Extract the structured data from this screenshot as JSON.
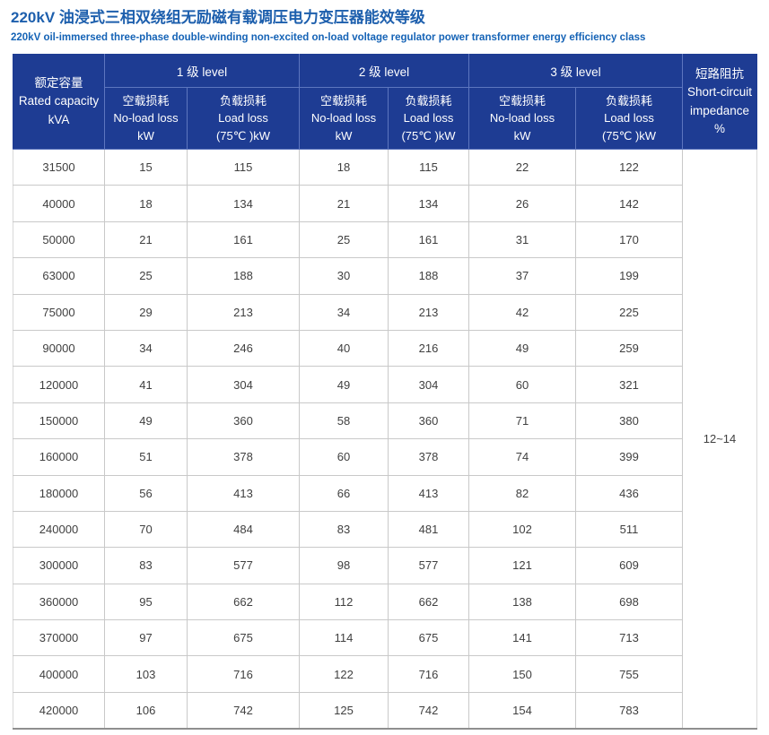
{
  "page": {
    "title": "220kV 油浸式三相双绕组无励磁有载调压电力变压器能效等级",
    "subtitle": "220kV oil-immersed three-phase double-winding non-excited on-load voltage regulator power transformer energy efficiency class"
  },
  "colors": {
    "title_blue": "#1d5fad",
    "subtitle_blue": "#1563b6",
    "header_background": "#1e3c93",
    "header_divider": "#5d76bf",
    "body_text": "#404040",
    "grid_line": "#c9c9c9",
    "bottom_line": "#8f8f8f"
  },
  "table": {
    "header": {
      "rated_capacity": "额定容量\nRated capacity\nkVA",
      "levels": [
        {
          "label": "1 级 level",
          "no_load": "空载损耗\nNo-load loss\nkW",
          "load": "负载损耗\nLoad loss\n(75℃ )kW"
        },
        {
          "label": "2 级 level",
          "no_load": "空载损耗\nNo-load loss\nkW",
          "load": "负载损耗\nLoad loss\n(75℃ )kW"
        },
        {
          "label": "3 级 level",
          "no_load": "空载损耗\nNo-load loss\nkW",
          "load": "负载损耗\nLoad loss\n(75℃ )kW"
        }
      ],
      "short_circuit": "短路阻抗\nShort-circuit\nimpedance\n%"
    },
    "rows": [
      [
        "31500",
        "15",
        "115",
        "18",
        "115",
        "22",
        "122"
      ],
      [
        "40000",
        "18",
        "134",
        "21",
        "134",
        "26",
        "142"
      ],
      [
        "50000",
        "21",
        "161",
        "25",
        "161",
        "31",
        "170"
      ],
      [
        "63000",
        "25",
        "188",
        "30",
        "188",
        "37",
        "199"
      ],
      [
        "75000",
        "29",
        "213",
        "34",
        "213",
        "42",
        "225"
      ],
      [
        "90000",
        "34",
        "246",
        "40",
        "216",
        "49",
        "259"
      ],
      [
        "120000",
        "41",
        "304",
        "49",
        "304",
        "60",
        "321"
      ],
      [
        "150000",
        "49",
        "360",
        "58",
        "360",
        "71",
        "380"
      ],
      [
        "160000",
        "51",
        "378",
        "60",
        "378",
        "74",
        "399"
      ],
      [
        "180000",
        "56",
        "413",
        "66",
        "413",
        "82",
        "436"
      ],
      [
        "240000",
        "70",
        "484",
        "83",
        "481",
        "102",
        "511"
      ],
      [
        "300000",
        "83",
        "577",
        "98",
        "577",
        "121",
        "609"
      ],
      [
        "360000",
        "95",
        "662",
        "112",
        "662",
        "138",
        "698"
      ],
      [
        "370000",
        "97",
        "675",
        "114",
        "675",
        "141",
        "713"
      ],
      [
        "400000",
        "103",
        "716",
        "122",
        "716",
        "150",
        "755"
      ],
      [
        "420000",
        "106",
        "742",
        "125",
        "742",
        "154",
        "783"
      ]
    ],
    "short_circuit_value": "12~14"
  }
}
